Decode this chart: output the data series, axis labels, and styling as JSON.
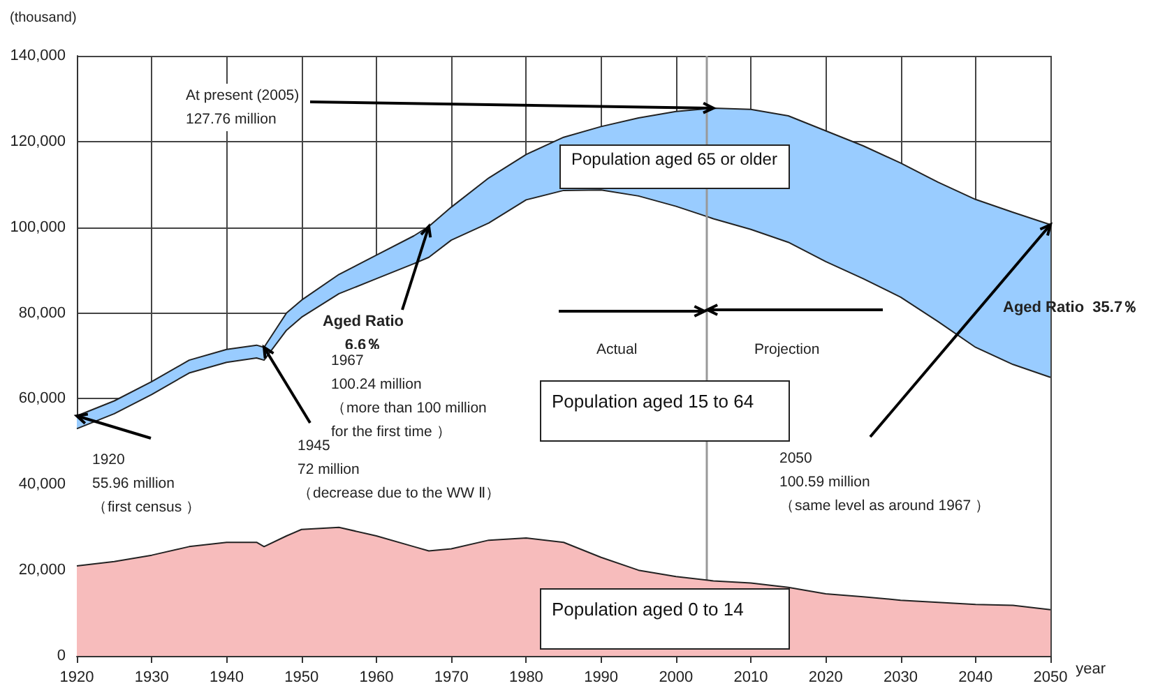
{
  "chart_data": {
    "type": "area",
    "stacked": true,
    "ylabel": "(thousand)",
    "xlabel": "year",
    "x": [
      1920,
      1925,
      1930,
      1935,
      1940,
      1944,
      1945,
      1948,
      1950,
      1955,
      1960,
      1965,
      1967,
      1970,
      1975,
      1980,
      1985,
      1990,
      1995,
      2000,
      2005,
      2010,
      2015,
      2020,
      2025,
      2030,
      2035,
      2040,
      2045,
      2050
    ],
    "series": [
      {
        "name": "Population aged 0 to 14",
        "color": "#f7bcbc",
        "values": [
          21000,
          22000,
          23500,
          25500,
          26500,
          26500,
          25500,
          28000,
          29500,
          30000,
          28000,
          25500,
          24500,
          25000,
          27000,
          27500,
          26500,
          23000,
          20000,
          18500,
          17500,
          17000,
          16000,
          14500,
          13800,
          13000,
          12500,
          12000,
          11800,
          10800
        ]
      },
      {
        "name": "Population aged 15 to 64",
        "color": "#ffffff",
        "values": [
          32000,
          34500,
          37500,
          40500,
          42000,
          43000,
          43500,
          48000,
          49500,
          54500,
          60000,
          66000,
          68500,
          72000,
          74000,
          78900,
          82100,
          85700,
          87300,
          86400,
          84500,
          82500,
          80500,
          77500,
          74200,
          70700,
          65500,
          60000,
          56200,
          54200
        ]
      },
      {
        "name": "Population aged 65 or older",
        "color": "#99ccff",
        "values": [
          3000,
          3000,
          3000,
          3000,
          3000,
          3000,
          3000,
          4000,
          4000,
          4500,
          5500,
          6500,
          7200,
          7700,
          10500,
          10600,
          12400,
          14800,
          18200,
          22100,
          25800,
          28000,
          29500,
          30500,
          31000,
          31300,
          32500,
          34500,
          35500,
          35600
        ]
      }
    ],
    "xlim": [
      1920,
      2050
    ],
    "xticks": [
      1920,
      1930,
      1940,
      1950,
      1960,
      1970,
      1980,
      1990,
      2000,
      2010,
      2020,
      2030,
      2040,
      2050
    ],
    "ylim": [
      0,
      140000
    ],
    "yticks": [
      0,
      {
        "value": 20000,
        "label": "20,000"
      },
      {
        "value": 40000,
        "label": "40,000"
      },
      {
        "value": 60000,
        "label": "60,000"
      },
      {
        "value": 80000,
        "label": "80,000"
      },
      {
        "value": 100000,
        "label": "100,000"
      },
      {
        "value": 120000,
        "label": "120,000"
      },
      {
        "value": 140000,
        "label": "140,000"
      }
    ],
    "grid": true,
    "legend": false,
    "marker": "none",
    "line_style": "solid",
    "ref_lines": [
      {
        "axis": "x",
        "value": 2004,
        "color": "#999999"
      }
    ],
    "annotations": [
      {
        "text": "At present (2005)\n127.76 million",
        "x": 2005,
        "y": 127800
      },
      {
        "text": "1920\n55.96 million\n（first census ）",
        "x": 1920,
        "y": 56000
      },
      {
        "text": "1945\n72 million\n（decrease due to the WW Ⅱ）",
        "x": 1945,
        "y": 72000
      },
      {
        "text": "Aged Ratio\n6.6％",
        "x": 1967,
        "y": 100200
      },
      "1967\n100.24 million\n（more than 100 million\nfor the first time ）",
      {
        "text": "2050\n100.59 million\n（same level as around 1967 ）",
        "x": 2050,
        "y": 100600
      },
      "Aged Ratio  35.7％",
      "Actual",
      "Projection"
    ]
  }
}
